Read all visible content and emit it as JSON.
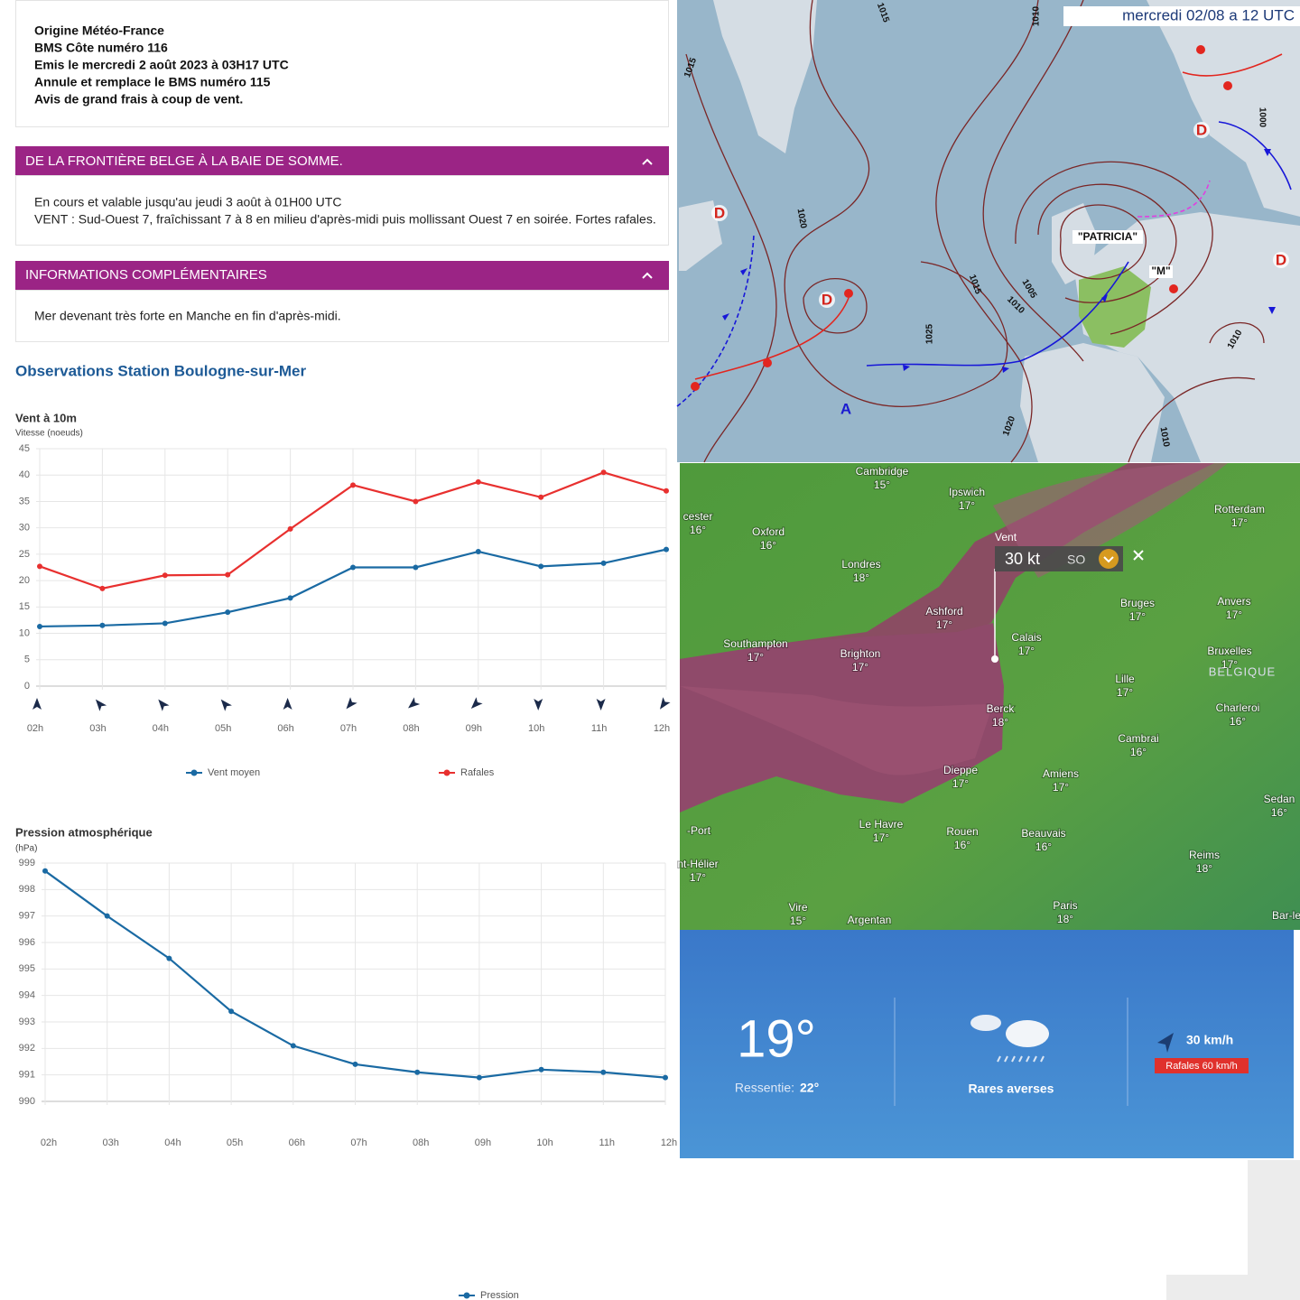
{
  "bulletin": {
    "lines": [
      "Origine Météo-France",
      "BMS Côte numéro 116",
      "Emis le mercredi 2 août 2023 à 03H17 UTC",
      "Annule et remplace le BMS numéro 115",
      "Avis de grand frais à coup de vent."
    ]
  },
  "sections": [
    {
      "title": "DE LA FRONTIÈRE BELGE À LA BAIE DE SOMME.",
      "lines": [
        "En cours et valable jusqu'au jeudi 3 août à 01H00 UTC",
        "VENT : Sud-Ouest 7, fraîchissant 7 à 8 en milieu d'après-midi puis mollissant Ouest 7 en soirée. Fortes rafales."
      ]
    },
    {
      "title": "INFORMATIONS COMPLÉMENTAIRES",
      "lines": [
        "Mer devenant très forte en Manche en fin d'après-midi."
      ]
    }
  ],
  "observations_title": "Observations Station Boulogne-sur-Mer",
  "chart_data": [
    {
      "type": "line",
      "title": "Vent à 10m",
      "y_label": "Vitesse (noeuds)",
      "categories": [
        "02h",
        "03h",
        "04h",
        "05h",
        "06h",
        "07h",
        "08h",
        "09h",
        "10h",
        "11h",
        "12h"
      ],
      "series": [
        {
          "name": "Vent moyen",
          "color": "#1a6aa3",
          "values": [
            11.3,
            11.5,
            11.9,
            14,
            16.7,
            22.5,
            22.5,
            25.5,
            22.7,
            23.3,
            25.9
          ]
        },
        {
          "name": "Rafales",
          "color": "#e8302f",
          "values": [
            22.7,
            18.5,
            21,
            21.1,
            29.8,
            38.1,
            35,
            38.7,
            35.8,
            40.5,
            37
          ]
        }
      ],
      "ylim": [
        0,
        45
      ],
      "yticks": [
        0,
        5,
        10,
        15,
        20,
        25,
        30,
        35,
        40,
        45
      ],
      "grid": true,
      "legend": "bottom"
    },
    {
      "type": "line",
      "title": "Pression atmosphérique",
      "y_label": "(hPa)",
      "categories": [
        "02h",
        "03h",
        "04h",
        "05h",
        "06h",
        "07h",
        "08h",
        "09h",
        "10h",
        "11h",
        "12h"
      ],
      "series": [
        {
          "name": "Pression",
          "color": "#1a6aa3",
          "values": [
            998.7,
            997,
            995.4,
            993.4,
            992.1,
            991.4,
            991.1,
            990.9,
            991.2,
            991.1,
            990.9
          ]
        }
      ],
      "ylim": [
        990,
        999
      ],
      "yticks": [
        990,
        991,
        992,
        993,
        994,
        995,
        996,
        997,
        998,
        999
      ],
      "grid": true,
      "legend": "bottom"
    }
  ],
  "synoptic_map": {
    "title": "mercredi 02/08 a 12 UTC",
    "systems": [
      "\"PATRICIA\"",
      "\"M\""
    ],
    "pressure_centres": [
      "D",
      "D",
      "D",
      "D",
      "A"
    ],
    "isobars": [
      "1015",
      "1010",
      "1015",
      "1020",
      "1025",
      "1005",
      "1000",
      "1010",
      "1015",
      "1020",
      "1010",
      "1010"
    ]
  },
  "wind_map": {
    "tooltip": {
      "label": "Vent",
      "speed": "30 kt",
      "direction": "SO"
    },
    "cities": [
      {
        "name": "Cambridge",
        "temp": "15°"
      },
      {
        "name": "Ipswich",
        "temp": "17°"
      },
      {
        "name": "Rotterdam",
        "temp": "17°"
      },
      {
        "name": "cester",
        "temp": "16°"
      },
      {
        "name": "Oxford",
        "temp": "16°"
      },
      {
        "name": "Londres",
        "temp": "18°"
      },
      {
        "name": "Ashford",
        "temp": "17°"
      },
      {
        "name": "Calais",
        "temp": "17°"
      },
      {
        "name": "Bruges",
        "temp": "17°"
      },
      {
        "name": "Anvers",
        "temp": "17°"
      },
      {
        "name": "Southampton",
        "temp": "17°"
      },
      {
        "name": "Brighton",
        "temp": "17°"
      },
      {
        "name": "Bruxelles",
        "temp": "17°"
      },
      {
        "name": "Lille",
        "temp": "17°"
      },
      {
        "name": "Berck",
        "temp": "18°"
      },
      {
        "name": "Charleroi",
        "temp": "16°"
      },
      {
        "name": "Cambrai",
        "temp": "16°"
      },
      {
        "name": "Dieppe",
        "temp": "17°"
      },
      {
        "name": "Amiens",
        "temp": "17°"
      },
      {
        "name": "Sedan",
        "temp": "16°"
      },
      {
        "name": "Le Havre",
        "temp": "17°"
      },
      {
        "name": "Rouen",
        "temp": "16°"
      },
      {
        "name": "Beauvais",
        "temp": "16°"
      },
      {
        "name": "nt-Hélier",
        "temp": "17°"
      },
      {
        "name": "Reims",
        "temp": "18°"
      },
      {
        "name": "Vire",
        "temp": "15°"
      },
      {
        "name": "Paris",
        "temp": "18°"
      },
      {
        "name": "-Port"
      },
      {
        "name": "Argentan"
      },
      {
        "name": "Bar-le"
      }
    ],
    "country": "BELGIQUE"
  },
  "widget": {
    "temperature": "19°",
    "feels_label": "Ressentie:",
    "feels_value": "22°",
    "condition": "Rares averses",
    "wind": "30 km/h",
    "gusts": "Rafales 60 km/h"
  }
}
